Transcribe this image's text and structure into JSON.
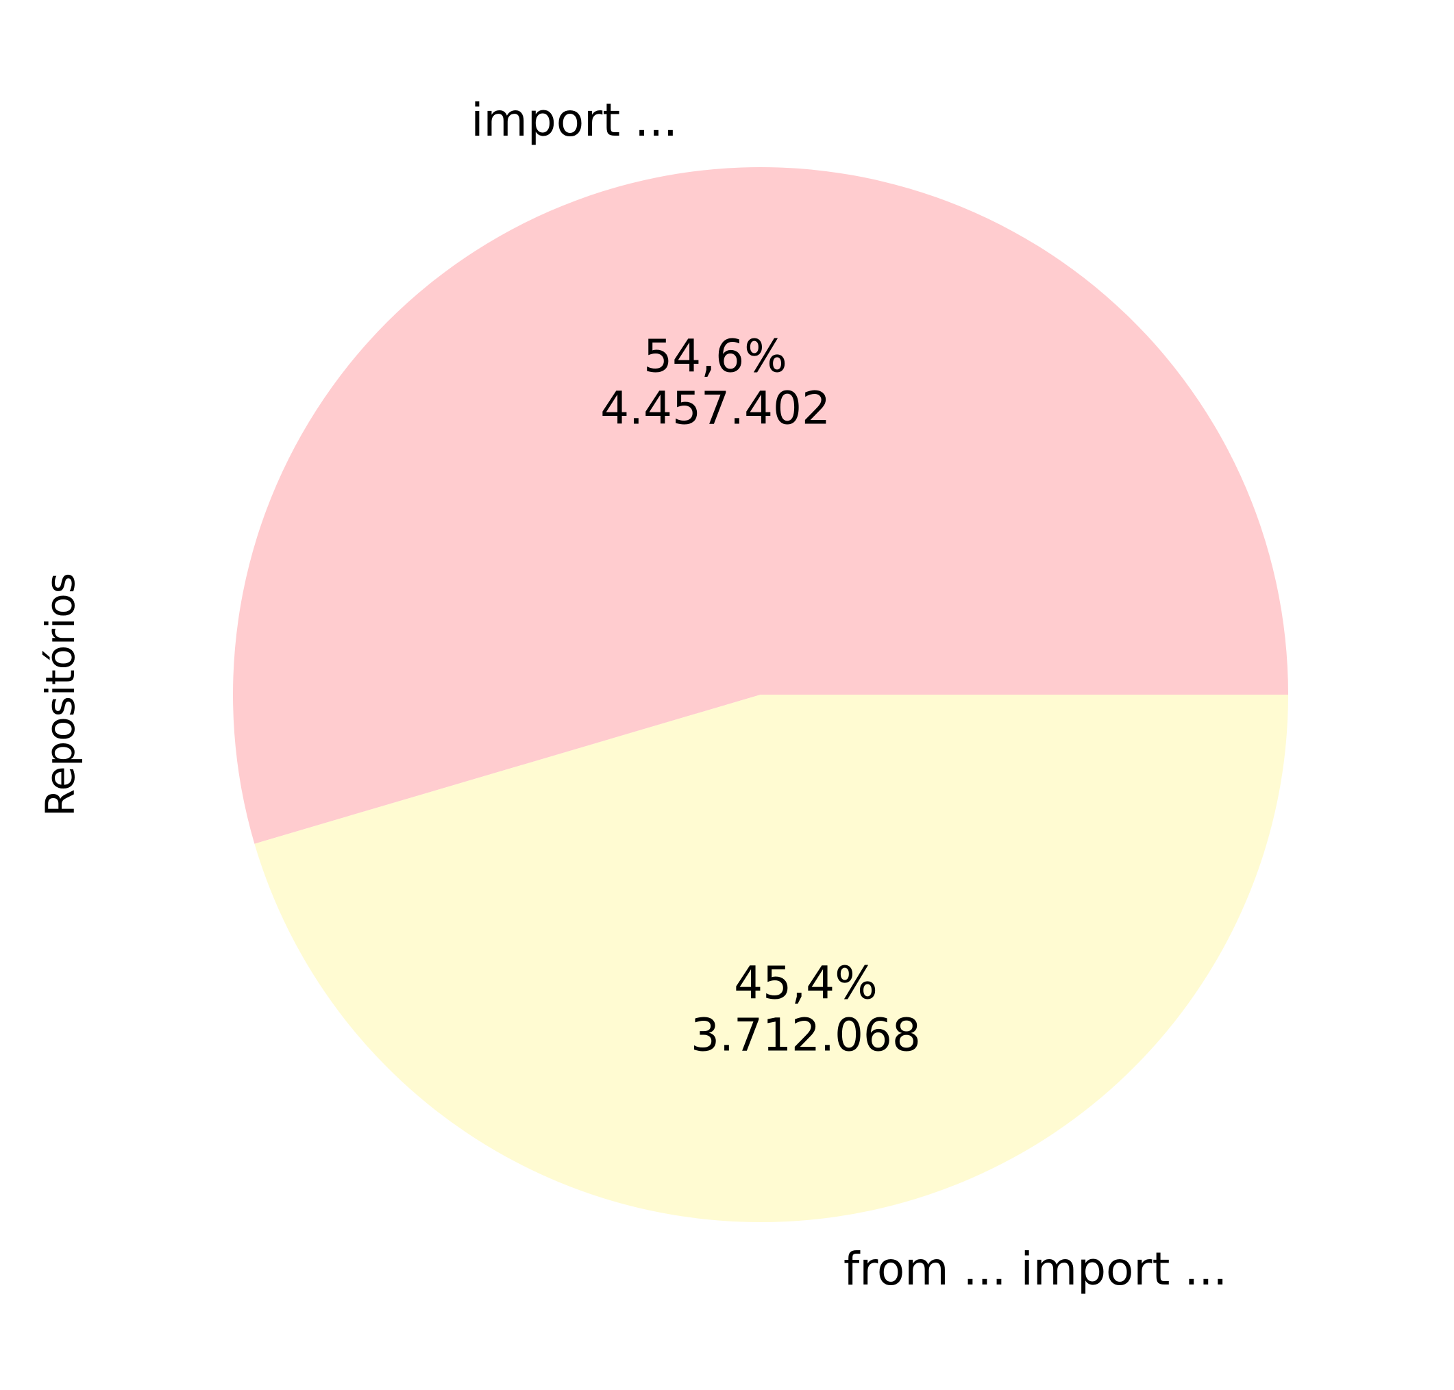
{
  "chart_data": {
    "type": "pie",
    "ylabel": "Repositórios",
    "start_angle_deg": 0,
    "direction": "counterclockwise",
    "slices": [
      {
        "label": "import ...",
        "value": 4457402,
        "value_label": "4.457.402",
        "percent_label": "54,6%",
        "color": "#ffcccf"
      },
      {
        "label": "from ... import ...",
        "value": 3712068,
        "value_label": "3.712.068",
        "percent_label": "45,4%",
        "color": "#fffbd2"
      }
    ]
  }
}
